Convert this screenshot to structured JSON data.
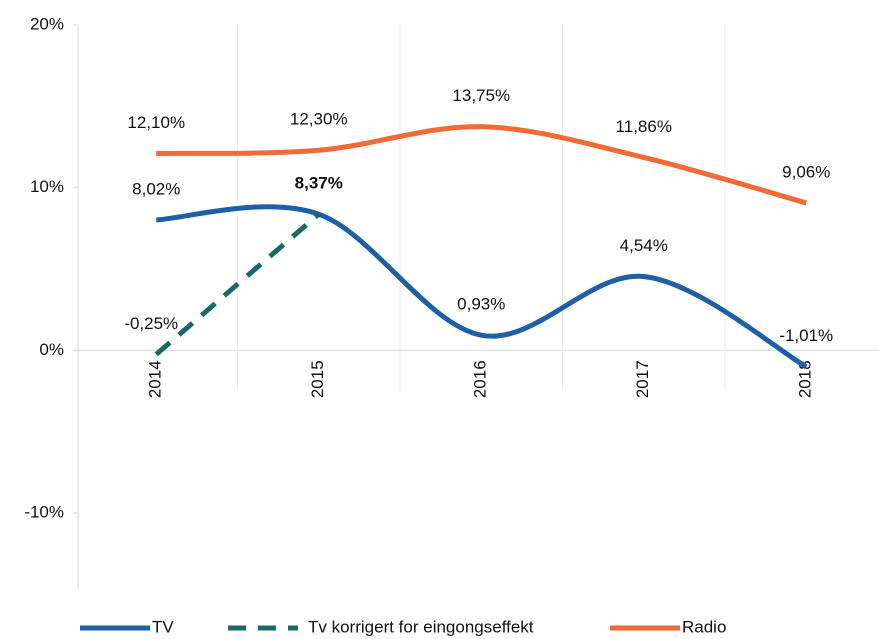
{
  "chart_data": {
    "type": "line",
    "categories": [
      "2014",
      "2015",
      "2016",
      "2017",
      "2018"
    ],
    "series": [
      {
        "name": "TV",
        "color": "#1f5fa6",
        "dash": false,
        "values": [
          8.02,
          8.37,
          0.93,
          4.54,
          -1.01
        ],
        "value_labels": [
          "8,02%",
          "8,37%",
          "0,93%",
          "4,54%",
          "-1,01%"
        ]
      },
      {
        "name": "Tv korrigert for eingongseffekt",
        "color": "#17696a",
        "dash": true,
        "values": [
          -0.25,
          8.37,
          null,
          null,
          null
        ],
        "value_labels": [
          "-0,25%",
          null,
          null,
          null,
          null
        ]
      },
      {
        "name": "Radio",
        "color": "#f26a36",
        "dash": false,
        "values": [
          12.1,
          12.3,
          13.75,
          11.86,
          9.06
        ],
        "value_labels": [
          "12,10%",
          "12,30%",
          "13,75%",
          "11,86%",
          "9,06%"
        ]
      }
    ],
    "ylim": [
      -10,
      20
    ],
    "yticks": [
      {
        "value": -10,
        "label": "-10%"
      },
      {
        "value": 0,
        "label": "0%"
      },
      {
        "value": 10,
        "label": "10%"
      },
      {
        "value": 20,
        "label": "20%"
      }
    ],
    "legend": "bottom"
  }
}
